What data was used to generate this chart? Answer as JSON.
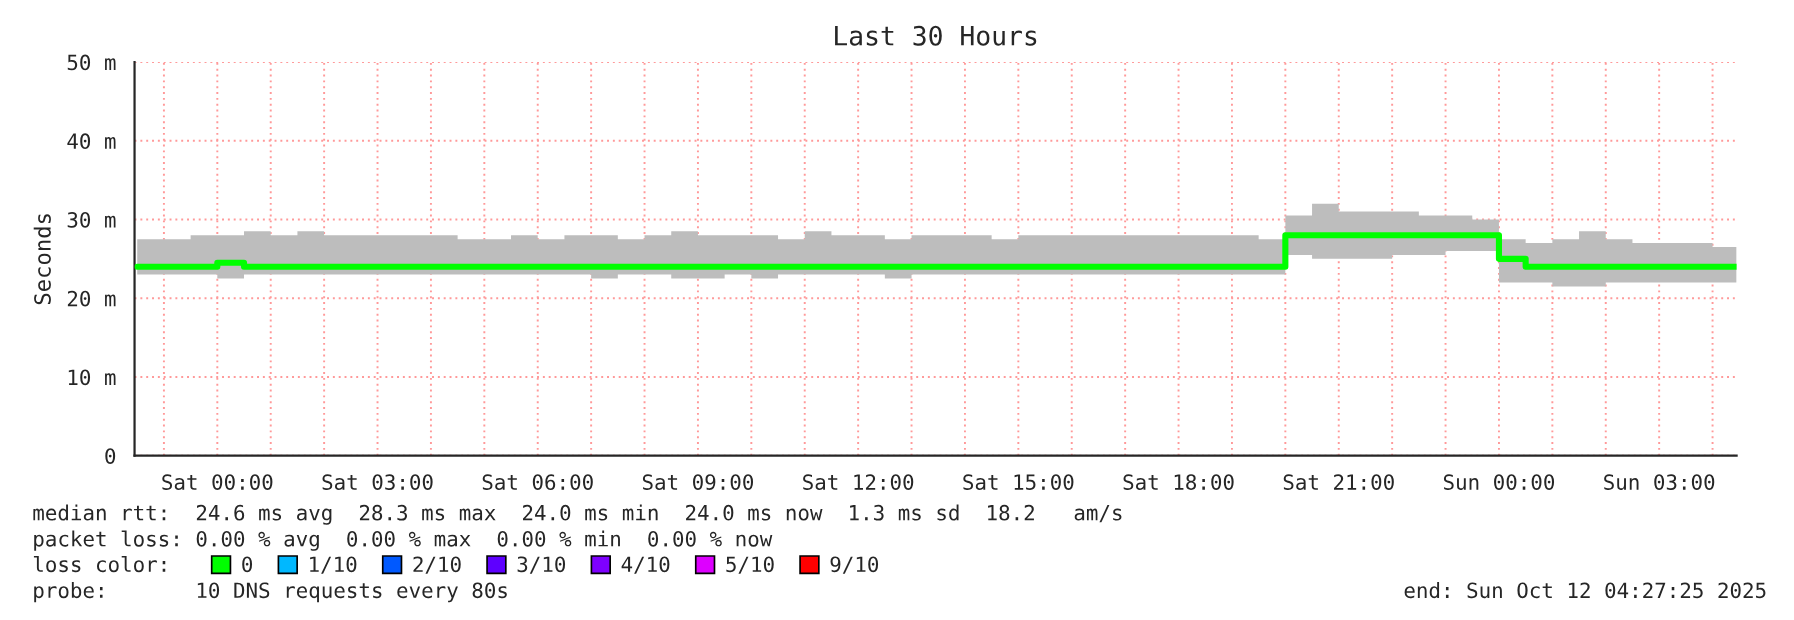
{
  "chart_data": {
    "type": "step",
    "title": "Last 30 Hours",
    "ylabel": "Seconds",
    "x": [
      "2025-10-10T22:30",
      "2025-10-10T23:00",
      "2025-10-10T23:30",
      "2025-10-11T00:00",
      "2025-10-11T00:30",
      "2025-10-11T01:00",
      "2025-10-11T01:30",
      "2025-10-11T02:00",
      "2025-10-11T02:30",
      "2025-10-11T03:00",
      "2025-10-11T03:30",
      "2025-10-11T04:00",
      "2025-10-11T04:30",
      "2025-10-11T05:00",
      "2025-10-11T05:30",
      "2025-10-11T06:00",
      "2025-10-11T06:30",
      "2025-10-11T07:00",
      "2025-10-11T07:30",
      "2025-10-11T08:00",
      "2025-10-11T08:30",
      "2025-10-11T09:00",
      "2025-10-11T09:30",
      "2025-10-11T10:00",
      "2025-10-11T10:30",
      "2025-10-11T11:00",
      "2025-10-11T11:30",
      "2025-10-11T12:00",
      "2025-10-11T12:30",
      "2025-10-11T13:00",
      "2025-10-11T13:30",
      "2025-10-11T14:00",
      "2025-10-11T14:30",
      "2025-10-11T15:00",
      "2025-10-11T15:30",
      "2025-10-11T16:00",
      "2025-10-11T16:30",
      "2025-10-11T17:00",
      "2025-10-11T17:30",
      "2025-10-11T18:00",
      "2025-10-11T18:30",
      "2025-10-11T19:00",
      "2025-10-11T19:30",
      "2025-10-11T20:00",
      "2025-10-11T20:30",
      "2025-10-11T21:00",
      "2025-10-11T21:30",
      "2025-10-11T22:00",
      "2025-10-11T22:30",
      "2025-10-11T23:00",
      "2025-10-11T23:30",
      "2025-10-12T00:00",
      "2025-10-12T00:30",
      "2025-10-12T01:00",
      "2025-10-12T01:30",
      "2025-10-12T02:00",
      "2025-10-12T02:30",
      "2025-10-12T03:00",
      "2025-10-12T03:30",
      "2025-10-12T04:00",
      "2025-10-12T04:27"
    ],
    "series": [
      {
        "name": "0",
        "color": "#00ff00",
        "values": [
          24,
          24,
          24,
          24.5,
          24,
          24,
          24,
          24,
          24,
          24,
          24,
          24,
          24,
          24,
          24,
          24,
          24,
          24,
          24,
          24,
          24,
          24,
          24,
          24,
          24,
          24,
          24,
          24,
          24,
          24,
          24,
          24,
          24,
          24,
          24,
          24,
          24,
          24,
          24,
          24,
          24,
          24,
          24,
          28,
          28,
          28,
          28,
          28,
          28,
          28,
          28,
          25,
          24,
          24,
          24,
          24,
          24,
          24,
          24,
          24,
          24
        ],
        "lower": [
          23,
          23,
          23,
          22.5,
          23,
          23,
          23,
          23,
          23,
          23,
          23,
          23,
          23,
          23,
          23,
          23,
          23,
          22.5,
          23,
          23,
          22.5,
          22.5,
          23,
          22.5,
          23,
          23,
          23,
          23,
          22.5,
          23,
          23,
          23,
          23,
          23,
          23,
          23,
          23,
          23,
          23,
          23,
          23,
          23,
          23,
          25.5,
          25,
          25,
          25,
          25.5,
          25.5,
          26,
          26,
          22,
          22,
          21.5,
          21.5,
          22,
          22,
          22,
          22,
          22,
          22
        ],
        "upper": [
          27.5,
          27.5,
          28,
          28,
          28.5,
          28,
          28.5,
          28,
          28,
          28,
          28,
          28,
          27.5,
          27.5,
          28,
          27.5,
          28,
          28,
          27.5,
          28,
          28.5,
          28,
          28,
          28,
          27.5,
          28.5,
          28,
          28,
          27.5,
          28,
          28,
          28,
          27.5,
          28,
          28,
          28,
          28,
          28,
          28,
          28,
          28,
          28,
          27.5,
          30.5,
          32,
          31,
          31,
          31,
          30.5,
          30.5,
          30,
          27.5,
          27,
          27.5,
          28.5,
          27.5,
          27,
          27,
          27,
          26.5,
          26.5
        ]
      },
      {
        "name": "1/10",
        "color": "#00b8ff",
        "values": [
          null,
          null,
          null,
          null,
          null,
          null,
          null,
          null,
          null,
          null,
          null,
          null,
          null,
          null,
          null,
          null,
          null,
          null,
          null,
          null,
          null,
          null,
          null,
          null,
          null,
          null,
          null,
          null,
          null,
          null,
          null,
          null,
          null,
          null,
          null,
          null,
          null,
          null,
          null,
          null,
          null,
          null,
          null,
          null,
          null,
          null,
          null,
          null,
          null,
          null,
          null,
          null,
          null,
          null,
          null,
          null,
          null,
          null,
          null,
          null,
          null
        ]
      },
      {
        "name": "2/10",
        "color": "#0059ff",
        "values": [
          null,
          null,
          null,
          null,
          null,
          null,
          null,
          null,
          null,
          null,
          null,
          null,
          null,
          null,
          null,
          null,
          null,
          null,
          null,
          null,
          null,
          null,
          null,
          null,
          null,
          null,
          null,
          null,
          null,
          null,
          null,
          null,
          null,
          null,
          null,
          null,
          null,
          null,
          null,
          null,
          null,
          null,
          null,
          null,
          null,
          null,
          null,
          null,
          null,
          null,
          null,
          null,
          null,
          null,
          null,
          null,
          null,
          null,
          null,
          null,
          null
        ]
      },
      {
        "name": "3/10",
        "color": "#5e00ff",
        "values": [
          null,
          null,
          null,
          null,
          null,
          null,
          null,
          null,
          null,
          null,
          null,
          null,
          null,
          null,
          null,
          null,
          null,
          null,
          null,
          null,
          null,
          null,
          null,
          null,
          null,
          null,
          null,
          null,
          null,
          null,
          null,
          null,
          null,
          null,
          null,
          null,
          null,
          null,
          null,
          null,
          null,
          null,
          null,
          null,
          null,
          null,
          null,
          null,
          null,
          null,
          null,
          null,
          null,
          null,
          null,
          null,
          null,
          null,
          null,
          null,
          null
        ]
      },
      {
        "name": "4/10",
        "color": "#7e00ff",
        "values": [
          null,
          null,
          null,
          null,
          null,
          null,
          null,
          null,
          null,
          null,
          null,
          null,
          null,
          null,
          null,
          null,
          null,
          null,
          null,
          null,
          null,
          null,
          null,
          null,
          null,
          null,
          null,
          null,
          null,
          null,
          null,
          null,
          null,
          null,
          null,
          null,
          null,
          null,
          null,
          null,
          null,
          null,
          null,
          null,
          null,
          null,
          null,
          null,
          null,
          null,
          null,
          null,
          null,
          null,
          null,
          null,
          null,
          null,
          null,
          null,
          null
        ]
      },
      {
        "name": "5/10",
        "color": "#dd00ff",
        "values": [
          null,
          null,
          null,
          null,
          null,
          null,
          null,
          null,
          null,
          null,
          null,
          null,
          null,
          null,
          null,
          null,
          null,
          null,
          null,
          null,
          null,
          null,
          null,
          null,
          null,
          null,
          null,
          null,
          null,
          null,
          null,
          null,
          null,
          null,
          null,
          null,
          null,
          null,
          null,
          null,
          null,
          null,
          null,
          null,
          null,
          null,
          null,
          null,
          null,
          null,
          null,
          null,
          null,
          null,
          null,
          null,
          null,
          null,
          null,
          null,
          null
        ]
      },
      {
        "name": "9/10",
        "color": "#ff0000",
        "values": [
          null,
          null,
          null,
          null,
          null,
          null,
          null,
          null,
          null,
          null,
          null,
          null,
          null,
          null,
          null,
          null,
          null,
          null,
          null,
          null,
          null,
          null,
          null,
          null,
          null,
          null,
          null,
          null,
          null,
          null,
          null,
          null,
          null,
          null,
          null,
          null,
          null,
          null,
          null,
          null,
          null,
          null,
          null,
          null,
          null,
          null,
          null,
          null,
          null,
          null,
          null,
          null,
          null,
          null,
          null,
          null,
          null,
          null,
          null,
          null,
          null
        ]
      }
    ],
    "legend": "bottom",
    "legend_title": "loss color:",
    "xlim": [
      "2025-10-10T22:27",
      "2025-10-12T04:27"
    ],
    "xticks": [
      {
        "value": "2025-10-10T23:00",
        "label": null
      },
      {
        "value": "2025-10-11T00:00",
        "label": "Sat 00:00"
      },
      {
        "value": "2025-10-11T01:00",
        "label": null
      },
      {
        "value": "2025-10-11T02:00",
        "label": null
      },
      {
        "value": "2025-10-11T03:00",
        "label": "Sat 03:00"
      },
      {
        "value": "2025-10-11T04:00",
        "label": null
      },
      {
        "value": "2025-10-11T05:00",
        "label": null
      },
      {
        "value": "2025-10-11T06:00",
        "label": "Sat 06:00"
      },
      {
        "value": "2025-10-11T07:00",
        "label": null
      },
      {
        "value": "2025-10-11T08:00",
        "label": null
      },
      {
        "value": "2025-10-11T09:00",
        "label": "Sat 09:00"
      },
      {
        "value": "2025-10-11T10:00",
        "label": null
      },
      {
        "value": "2025-10-11T11:00",
        "label": null
      },
      {
        "value": "2025-10-11T12:00",
        "label": "Sat 12:00"
      },
      {
        "value": "2025-10-11T13:00",
        "label": null
      },
      {
        "value": "2025-10-11T14:00",
        "label": null
      },
      {
        "value": "2025-10-11T15:00",
        "label": "Sat 15:00"
      },
      {
        "value": "2025-10-11T16:00",
        "label": null
      },
      {
        "value": "2025-10-11T17:00",
        "label": null
      },
      {
        "value": "2025-10-11T18:00",
        "label": "Sat 18:00"
      },
      {
        "value": "2025-10-11T19:00",
        "label": null
      },
      {
        "value": "2025-10-11T20:00",
        "label": null
      },
      {
        "value": "2025-10-11T21:00",
        "label": "Sat 21:00"
      },
      {
        "value": "2025-10-11T22:00",
        "label": null
      },
      {
        "value": "2025-10-11T23:00",
        "label": null
      },
      {
        "value": "2025-10-12T00:00",
        "label": "Sun 00:00"
      },
      {
        "value": "2025-10-12T01:00",
        "label": null
      },
      {
        "value": "2025-10-12T02:00",
        "label": null
      },
      {
        "value": "2025-10-12T03:00",
        "label": "Sun 03:00"
      },
      {
        "value": "2025-10-12T04:00",
        "label": null
      }
    ],
    "ylim": [
      0,
      50
    ],
    "yticks": [
      0,
      {
        "value": 10,
        "label": "10 m"
      },
      {
        "value": 20,
        "label": "20 m"
      },
      {
        "value": 30,
        "label": "30 m"
      },
      {
        "value": 40,
        "label": "40 m"
      },
      {
        "value": 50,
        "label": "50 m"
      }
    ],
    "grid": true,
    "annotations": [
      "median rtt:  24.6 ms avg  28.3 ms max  24.0 ms min  24.0 ms now  1.3 ms sd  18.2   am/s",
      "packet loss: 0.00 % avg  0.00 % max  0.00 % min  0.00 % now",
      "probe:       10 DNS requests every 80s",
      "end: Sun Oct 12 04:27:25 2025"
    ]
  }
}
